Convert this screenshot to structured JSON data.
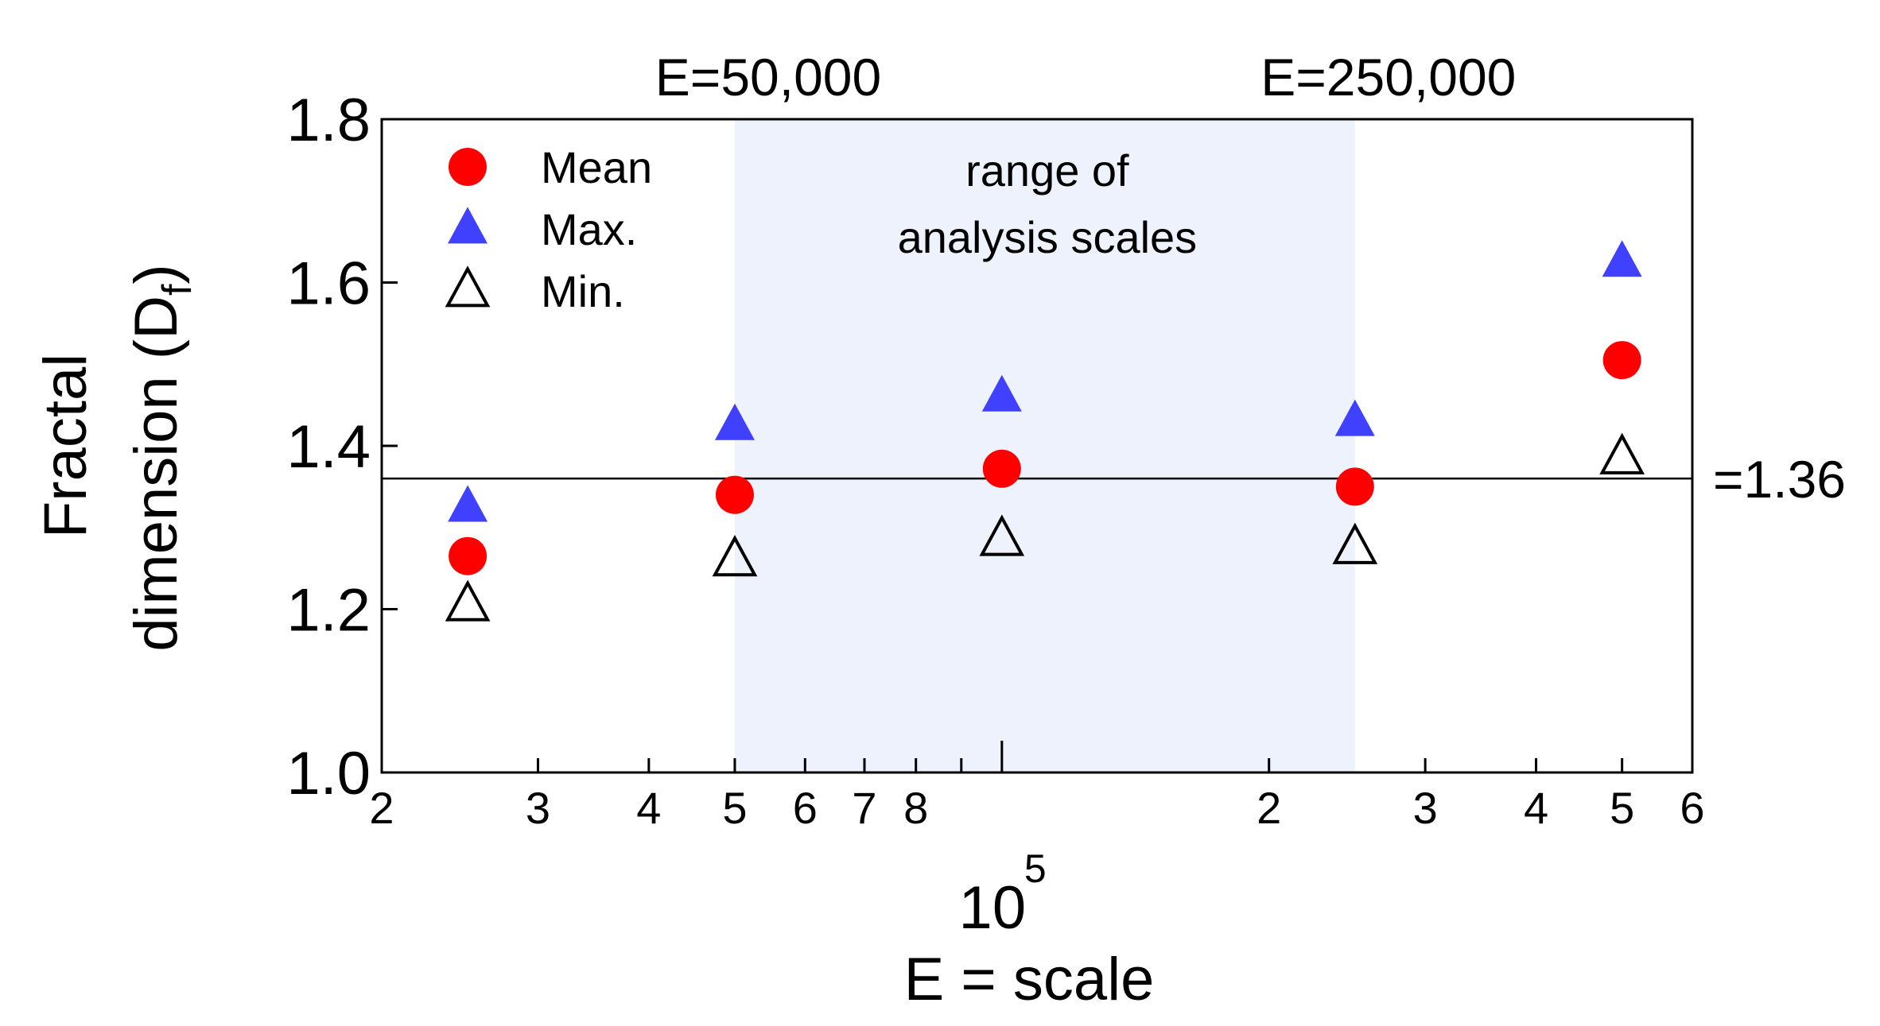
{
  "chart_data": {
    "type": "scatter",
    "x_scale": "log",
    "xlim": [
      20000,
      600000
    ],
    "ylim": [
      1.0,
      1.8
    ],
    "yticks": [
      {
        "value": 1.0,
        "label": "1.0"
      },
      {
        "value": 1.2,
        "label": "1.2"
      },
      {
        "value": 1.4,
        "label": "1.4"
      },
      {
        "value": 1.6,
        "label": "1.6"
      },
      {
        "value": 1.8,
        "label": "1.8"
      }
    ],
    "xtick_labels": [
      {
        "value": 20000,
        "label": "2"
      },
      {
        "value": 30000,
        "label": "3"
      },
      {
        "value": 40000,
        "label": "4"
      },
      {
        "value": 50000,
        "label": "5"
      },
      {
        "value": 60000,
        "label": "6"
      },
      {
        "value": 70000,
        "label": "7"
      },
      {
        "value": 80000,
        "label": "8"
      },
      {
        "value": 200000,
        "label": "2"
      },
      {
        "value": 300000,
        "label": "3"
      },
      {
        "value": 400000,
        "label": "4"
      },
      {
        "value": 500000,
        "label": "5"
      },
      {
        "value": 600000,
        "label": "6"
      }
    ],
    "xticks_minor": [
      30000,
      40000,
      50000,
      60000,
      70000,
      80000,
      90000,
      200000,
      300000,
      400000,
      500000
    ],
    "xticks_major": [
      100000
    ],
    "decade_label": {
      "base": "10",
      "exponent": "5",
      "value": 100000
    },
    "xlabel": "E = scale",
    "ylabel_line1": "Fractal",
    "ylabel_line2": "dimension (D",
    "ylabel_sub": "f",
    "ylabel_close": ")",
    "shaded_range": {
      "x": [
        50000,
        250000
      ],
      "label_line1": "range of",
      "label_line2": "analysis scales",
      "color": "#eef2fc"
    },
    "top_labels": [
      {
        "value": 50000,
        "text": "E=50,000"
      },
      {
        "value": 250000,
        "text": "E=250,000"
      }
    ],
    "reference_line": {
      "y": 1.36,
      "label": "=1.36"
    },
    "legend": {
      "position": "top-left"
    },
    "series": [
      {
        "name": "Mean",
        "marker": "circle",
        "color": "#ff0000",
        "x": [
          25000,
          50000,
          100000,
          250000,
          500000
        ],
        "y": [
          1.265,
          1.34,
          1.372,
          1.35,
          1.505
        ]
      },
      {
        "name": "Max.",
        "marker": "triangle-filled",
        "color": "#4040ff",
        "x": [
          25000,
          50000,
          100000,
          250000,
          500000
        ],
        "y": [
          1.325,
          1.425,
          1.46,
          1.43,
          1.625
        ]
      },
      {
        "name": "Min.",
        "marker": "triangle-open",
        "color": "#000000",
        "x": [
          25000,
          50000,
          100000,
          250000,
          500000
        ],
        "y": [
          1.205,
          1.26,
          1.285,
          1.275,
          1.385
        ]
      }
    ]
  }
}
